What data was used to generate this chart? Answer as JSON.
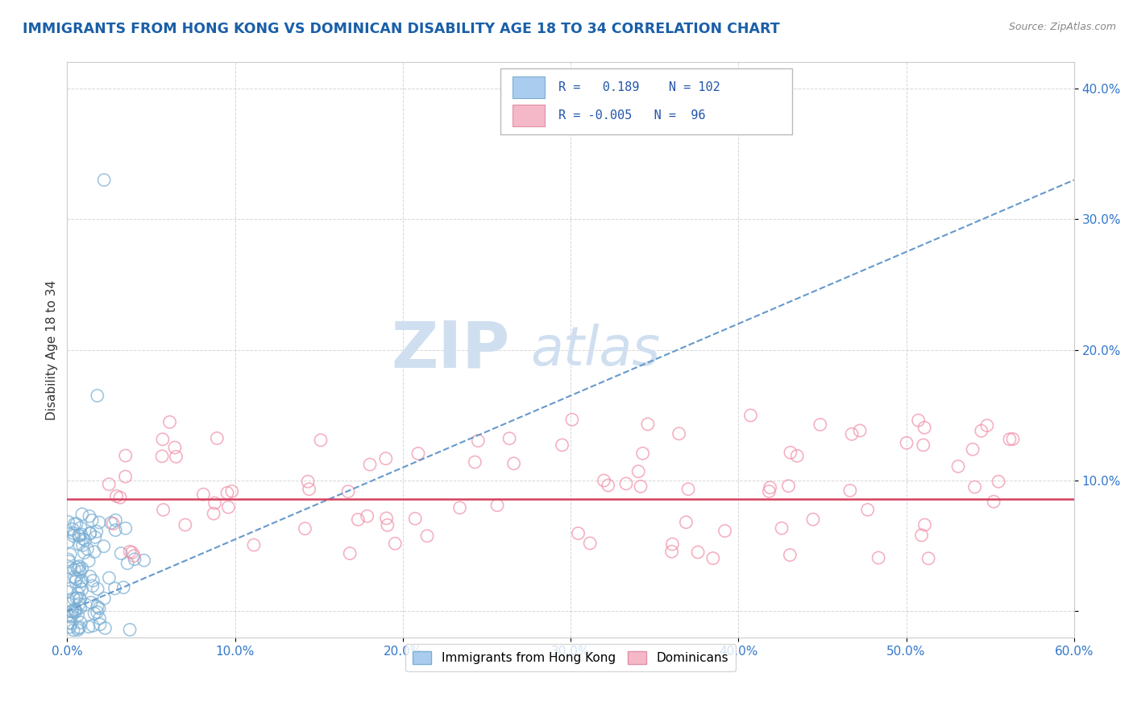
{
  "title": "IMMIGRANTS FROM HONG KONG VS DOMINICAN DISABILITY AGE 18 TO 34 CORRELATION CHART",
  "source": "Source: ZipAtlas.com",
  "ylabel": "Disability Age 18 to 34",
  "xmin": 0.0,
  "xmax": 0.6,
  "ymin": -0.02,
  "ymax": 0.42,
  "R1": 0.189,
  "N1": 102,
  "R2": -0.005,
  "N2": 96,
  "color1": "#7aafd4",
  "color2": "#f090a8",
  "trendline1_color": "#6699cc",
  "trendline2_color": "#d44060",
  "title_color": "#1a5fa8",
  "watermark_color": "#d0dff0",
  "legend_label1": "Immigrants from Hong Kong",
  "legend_label2": "Dominicans",
  "background_color": "#ffffff",
  "legend_text_color": "#2255aa",
  "ytick_color": "#3377cc",
  "xtick_color": "#3377cc"
}
